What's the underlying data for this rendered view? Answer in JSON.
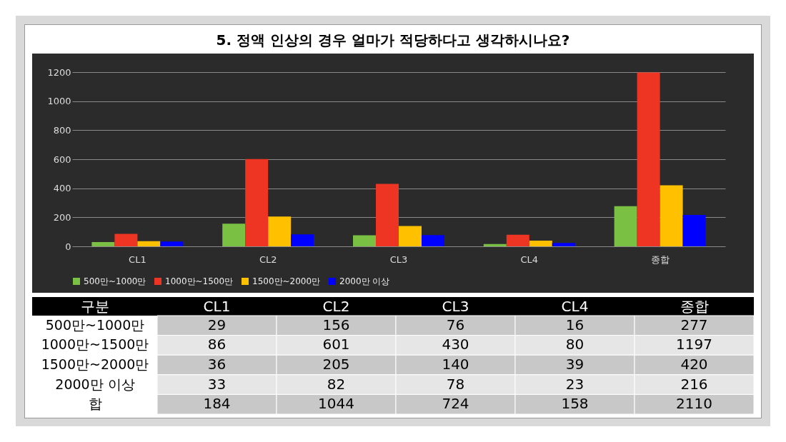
{
  "chart_data": [
    {
      "type": "bar",
      "title": "5. 정액 인상의 경우 얼마가 적당하다고 생각하시나요?",
      "categories": [
        "CL1",
        "CL2",
        "CL3",
        "CL4",
        "종합"
      ],
      "series": [
        {
          "name": "500만~1000만",
          "color": "#7ac143",
          "values": [
            29,
            156,
            76,
            16,
            277
          ]
        },
        {
          "name": "1000만~1500만",
          "color": "#ee3524",
          "values": [
            86,
            601,
            430,
            80,
            1197
          ]
        },
        {
          "name": "1500만~2000만",
          "color": "#ffc000",
          "values": [
            36,
            205,
            140,
            39,
            420
          ]
        },
        {
          "name": "2000만 이상",
          "color": "#0000ff",
          "values": [
            33,
            82,
            78,
            23,
            216
          ]
        }
      ],
      "ylim": [
        0,
        1200
      ],
      "yticks": [
        0,
        200,
        400,
        600,
        800,
        1000,
        1200
      ],
      "grid": "y",
      "legend": "bottom"
    },
    {
      "type": "heatmap",
      "ylabel": "구분",
      "data_labels": true,
      "categories": [
        "CL1",
        "CL2",
        "CL3",
        "CL4",
        "종합"
      ],
      "y_categories": [
        "500만~1000만",
        "1000만~1500만",
        "1500만~2000만",
        "2000만 이상",
        "합"
      ],
      "cells": [
        [
          29,
          156,
          76,
          16,
          277
        ],
        [
          86,
          601,
          430,
          80,
          1197
        ],
        [
          36,
          205,
          140,
          39,
          420
        ],
        [
          33,
          82,
          78,
          23,
          216
        ],
        [
          184,
          1044,
          724,
          158,
          2110
        ]
      ]
    }
  ]
}
